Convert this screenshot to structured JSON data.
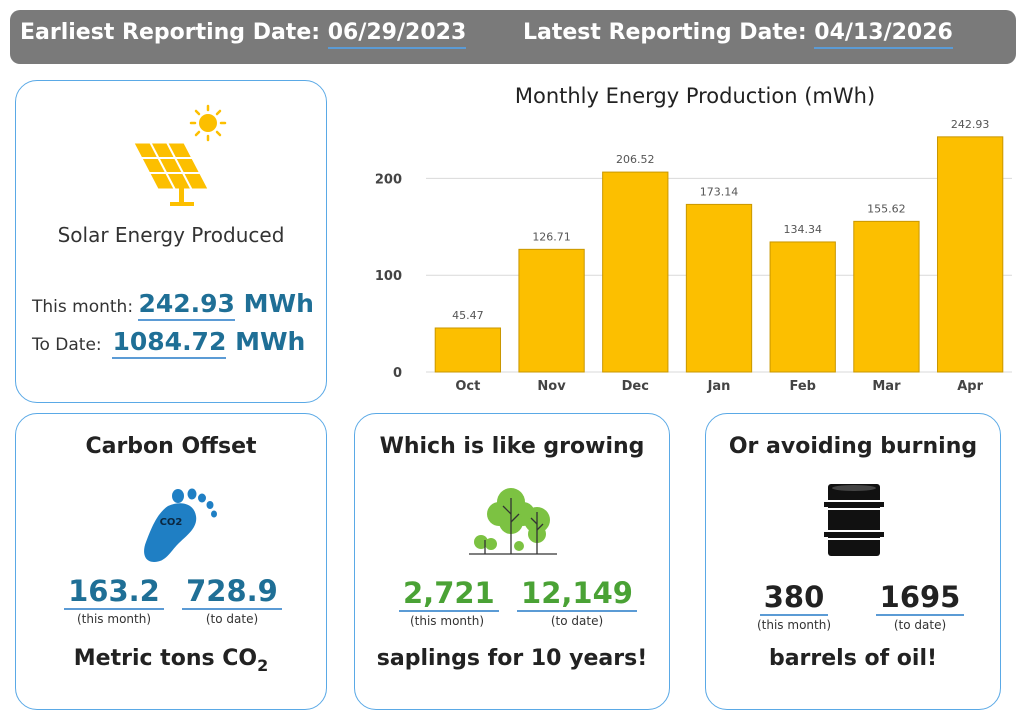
{
  "header": {
    "earliest_label": "Earliest Reporting Date:",
    "earliest_value": "06/29/2023",
    "latest_label": "Latest Reporting Date:",
    "latest_value": "04/13/2026"
  },
  "solar": {
    "title": "Solar Energy Produced",
    "this_month_label": "This month:",
    "this_month_value": "242.93",
    "this_month_unit": "MWh",
    "to_date_label": "To Date:",
    "to_date_value": "1084.72",
    "to_date_unit": "MWh"
  },
  "carbon": {
    "title": "Carbon Offset",
    "icon_text": "CO2",
    "month_value": "163.2",
    "month_label": "(this month)",
    "date_value": "728.9",
    "date_label": "(to date)",
    "footer": "Metric tons CO",
    "footer_sub": "2"
  },
  "saplings": {
    "title": "Which is like growing",
    "month_value": "2,721",
    "month_label": "(this month)",
    "date_value": "12,149",
    "date_label": "(to date)",
    "footer": "saplings for 10 years!"
  },
  "oil": {
    "title": "Or avoiding burning",
    "month_value": "380",
    "month_label": "(this month)",
    "date_value": "1695",
    "date_label": "(to date)",
    "footer": "barrels of oil!"
  },
  "colors": {
    "bar": "#fcbf00",
    "bar_stroke": "#c99700",
    "blue_value": "#1f6f96",
    "green_value": "#4aa235",
    "black_value": "#222222"
  },
  "chart_data": {
    "type": "bar",
    "title": "Monthly Energy Production (mWh)",
    "categories": [
      "Oct",
      "Nov",
      "Dec",
      "Jan",
      "Feb",
      "Mar",
      "Apr"
    ],
    "values": [
      45.47,
      126.71,
      206.52,
      173.14,
      134.34,
      155.62,
      242.93
    ],
    "labels": [
      "45.47",
      "126.71",
      "206.52",
      "173.14",
      "134.34",
      "155.62",
      "242.93"
    ],
    "yticks": [
      0,
      100,
      200
    ],
    "ylim": [
      0,
      250
    ],
    "xlabel": "",
    "ylabel": "",
    "grid": true
  }
}
